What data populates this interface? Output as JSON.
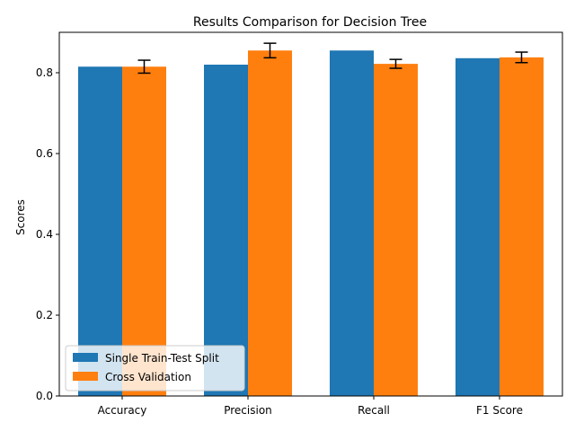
{
  "chart_data": {
    "type": "bar",
    "title": "Results Comparison for Decision Tree",
    "xlabel": "",
    "ylabel": "Scores",
    "categories": [
      "Accuracy",
      "Precision",
      "Recall",
      "F1 Score"
    ],
    "series": [
      {
        "name": "Single Train-Test Split",
        "color": "#1f77b4",
        "values": [
          0.815,
          0.82,
          0.855,
          0.836
        ],
        "errors": null
      },
      {
        "name": "Cross Validation",
        "color": "#ff7f0e",
        "values": [
          0.815,
          0.855,
          0.822,
          0.838
        ],
        "errors": [
          0.016,
          0.018,
          0.011,
          0.013
        ]
      }
    ],
    "ylim": [
      0,
      0.9
    ],
    "yticks": [
      0.0,
      0.2,
      0.4,
      0.6,
      0.8
    ],
    "ytick_labels": [
      "0.0",
      "0.2",
      "0.4",
      "0.6",
      "0.8"
    ],
    "grid": false,
    "legend_position": "lower-left"
  }
}
